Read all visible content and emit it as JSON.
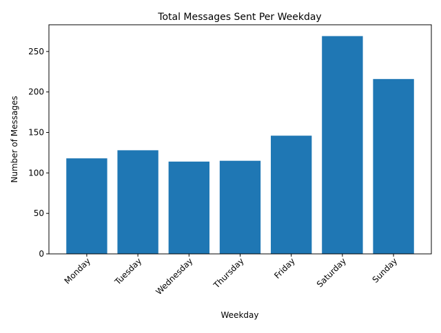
{
  "chart_data": {
    "type": "bar",
    "title": "Total Messages Sent Per Weekday",
    "xlabel": "Weekday",
    "ylabel": "Number of Messages",
    "categories": [
      "Monday",
      "Tuesday",
      "Wednesday",
      "Thursday",
      "Friday",
      "Saturday",
      "Sunday"
    ],
    "values": [
      118,
      128,
      114,
      115,
      146,
      269,
      216
    ],
    "ylim": [
      0,
      283
    ],
    "yticks": [
      0,
      50,
      100,
      150,
      200,
      250
    ],
    "grid": false,
    "bar_color": "#1f77b4"
  }
}
